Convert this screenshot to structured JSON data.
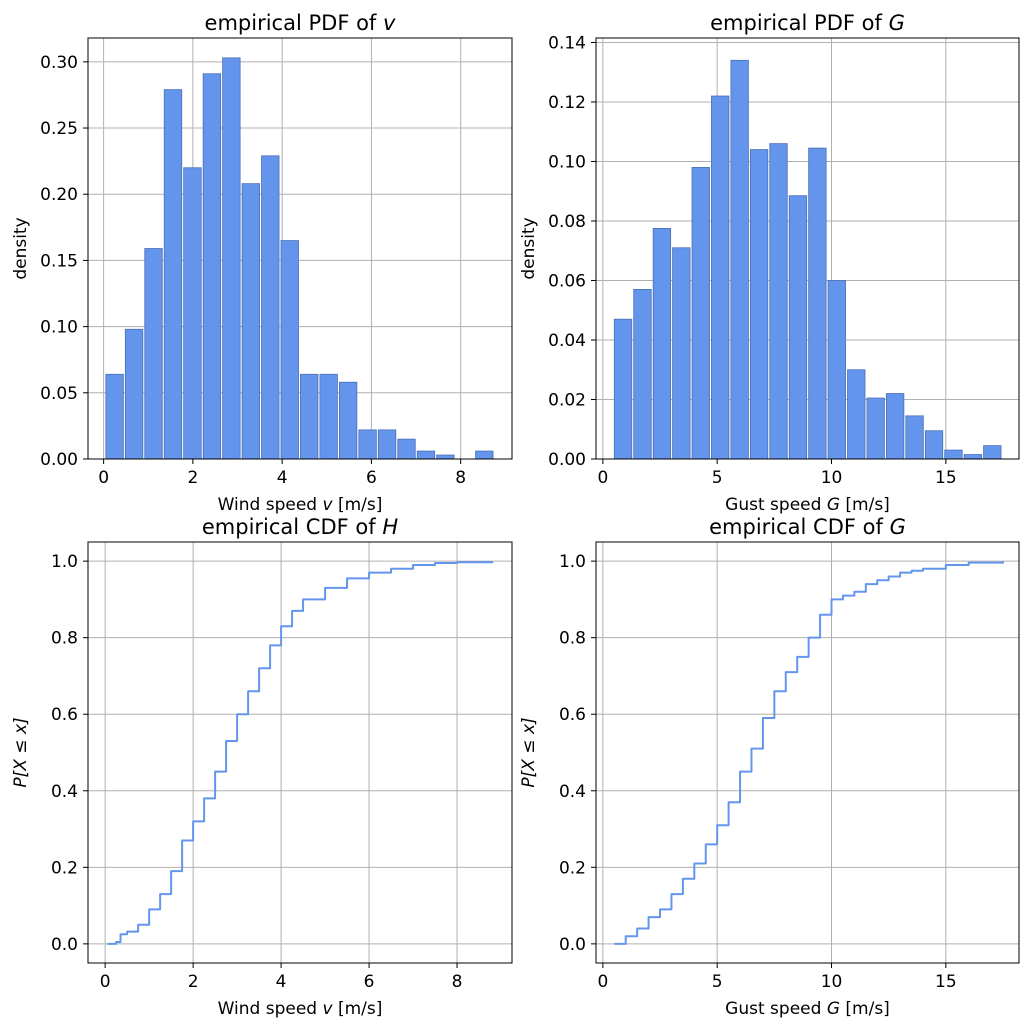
{
  "colors": {
    "bar_fill": "#6495ED",
    "bar_edge": "#4a6fb5",
    "line": "#6495ED",
    "grid": "#b0b0b0",
    "axis": "#000000"
  },
  "chart_data": [
    {
      "type": "bar",
      "title_main": "empirical PDF of ",
      "title_var": "v",
      "xlabel_main": "Wind speed ",
      "xlabel_var": "v",
      "xlabel_unit": " [m/s]",
      "ylabel": "density",
      "xlim": [
        -0.35,
        9.15
      ],
      "ylim": [
        0,
        0.318
      ],
      "xticks": [
        0,
        2,
        4,
        6,
        8
      ],
      "xtick_labels": [
        "0",
        "2",
        "4",
        "6",
        "8"
      ],
      "yticks": [
        0,
        0.05,
        0.1,
        0.15,
        0.2,
        0.25,
        0.3
      ],
      "ytick_labels": [
        "0.00",
        "0.05",
        "0.10",
        "0.15",
        "0.20",
        "0.25",
        "0.30"
      ],
      "bin_width": 0.436,
      "bar_fraction": 0.9,
      "bin_starts": [
        0.05,
        0.486,
        0.922,
        1.358,
        1.794,
        2.23,
        2.666,
        3.102,
        3.538,
        3.974,
        4.41,
        4.846,
        5.282,
        5.718,
        6.154,
        6.59,
        7.026,
        7.462,
        7.898,
        8.334
      ],
      "values": [
        0.064,
        0.098,
        0.159,
        0.279,
        0.22,
        0.291,
        0.303,
        0.208,
        0.229,
        0.165,
        0.064,
        0.064,
        0.058,
        0.022,
        0.022,
        0.015,
        0.006,
        0.003,
        0.0,
        0.006
      ],
      "grid": true
    },
    {
      "type": "bar",
      "title_main": "empirical PDF of ",
      "title_var": "G",
      "xlabel_main": "Gust speed ",
      "xlabel_var": "G",
      "xlabel_unit": " [m/s]",
      "ylabel": "density",
      "xlim": [
        -0.3,
        18.2
      ],
      "ylim": [
        0,
        0.1415
      ],
      "xticks": [
        0,
        5,
        10,
        15
      ],
      "xtick_labels": [
        "0",
        "5",
        "10",
        "15"
      ],
      "yticks": [
        0,
        0.02,
        0.04,
        0.06,
        0.08,
        0.1,
        0.12,
        0.14
      ],
      "ytick_labels": [
        "0.00",
        "0.02",
        "0.04",
        "0.06",
        "0.08",
        "0.10",
        "0.12",
        "0.14"
      ],
      "bin_width": 0.85,
      "bar_fraction": 0.9,
      "bin_starts": [
        0.5,
        1.35,
        2.2,
        3.05,
        3.9,
        4.75,
        5.6,
        6.45,
        7.3,
        8.15,
        9.0,
        9.85,
        10.7,
        11.55,
        12.4,
        13.25,
        14.1,
        14.95,
        15.8,
        16.65
      ],
      "values": [
        0.047,
        0.057,
        0.0775,
        0.071,
        0.098,
        0.122,
        0.134,
        0.104,
        0.106,
        0.0885,
        0.1045,
        0.06,
        0.03,
        0.0205,
        0.022,
        0.0145,
        0.0095,
        0.003,
        0.0015,
        0.0045
      ],
      "grid": true
    },
    {
      "type": "line",
      "step": true,
      "title_main": "empirical CDF of ",
      "title_var": "H",
      "xlabel_main": "Wind speed ",
      "xlabel_var": "v",
      "xlabel_unit": " [m/s]",
      "ylabel": "P[X ≤ x]",
      "xlim": [
        -0.39,
        9.25
      ],
      "ylim": [
        -0.05,
        1.05
      ],
      "xticks": [
        0,
        2,
        4,
        6,
        8
      ],
      "xtick_labels": [
        "0",
        "2",
        "4",
        "6",
        "8"
      ],
      "yticks": [
        0,
        0.2,
        0.4,
        0.6,
        0.8,
        1.0
      ],
      "ytick_labels": [
        "0.0",
        "0.2",
        "0.4",
        "0.6",
        "0.8",
        "1.0"
      ],
      "x": [
        0.05,
        0.25,
        0.35,
        0.5,
        0.75,
        1.0,
        1.25,
        1.5,
        1.75,
        2.0,
        2.25,
        2.5,
        2.75,
        3.0,
        3.25,
        3.5,
        3.75,
        4.0,
        4.25,
        4.5,
        5.0,
        5.5,
        6.0,
        6.5,
        7.0,
        7.5,
        8.0,
        8.8
      ],
      "y": [
        0.0,
        0.005,
        0.025,
        0.032,
        0.05,
        0.09,
        0.13,
        0.19,
        0.27,
        0.32,
        0.38,
        0.45,
        0.53,
        0.6,
        0.66,
        0.72,
        0.78,
        0.83,
        0.87,
        0.9,
        0.93,
        0.955,
        0.97,
        0.98,
        0.99,
        0.995,
        0.997,
        1.0
      ],
      "grid": true
    },
    {
      "type": "line",
      "step": true,
      "title_main": "empirical CDF of ",
      "title_var": "G",
      "xlabel_main": "Gust speed ",
      "xlabel_var": "G",
      "xlabel_unit": " [m/s]",
      "ylabel": "P[X ≤ x]",
      "xlim": [
        -0.3,
        18.2
      ],
      "ylim": [
        -0.05,
        1.05
      ],
      "xticks": [
        0,
        5,
        10,
        15
      ],
      "xtick_labels": [
        "0",
        "5",
        "10",
        "15"
      ],
      "yticks": [
        0,
        0.2,
        0.4,
        0.6,
        0.8,
        1.0
      ],
      "ytick_labels": [
        "0.0",
        "0.2",
        "0.4",
        "0.6",
        "0.8",
        "1.0"
      ],
      "x": [
        0.5,
        1.0,
        1.5,
        2.0,
        2.5,
        3.0,
        3.5,
        4.0,
        4.5,
        5.0,
        5.5,
        6.0,
        6.5,
        7.0,
        7.5,
        8.0,
        8.5,
        9.0,
        9.5,
        10.0,
        10.5,
        11.0,
        11.5,
        12.0,
        12.5,
        13.0,
        13.5,
        14.0,
        15.0,
        16.0,
        17.5
      ],
      "y": [
        0.0,
        0.02,
        0.04,
        0.07,
        0.09,
        0.13,
        0.17,
        0.21,
        0.26,
        0.31,
        0.37,
        0.45,
        0.51,
        0.59,
        0.66,
        0.71,
        0.75,
        0.8,
        0.86,
        0.9,
        0.91,
        0.92,
        0.94,
        0.95,
        0.96,
        0.97,
        0.975,
        0.98,
        0.99,
        0.996,
        1.0
      ],
      "grid": true
    }
  ]
}
